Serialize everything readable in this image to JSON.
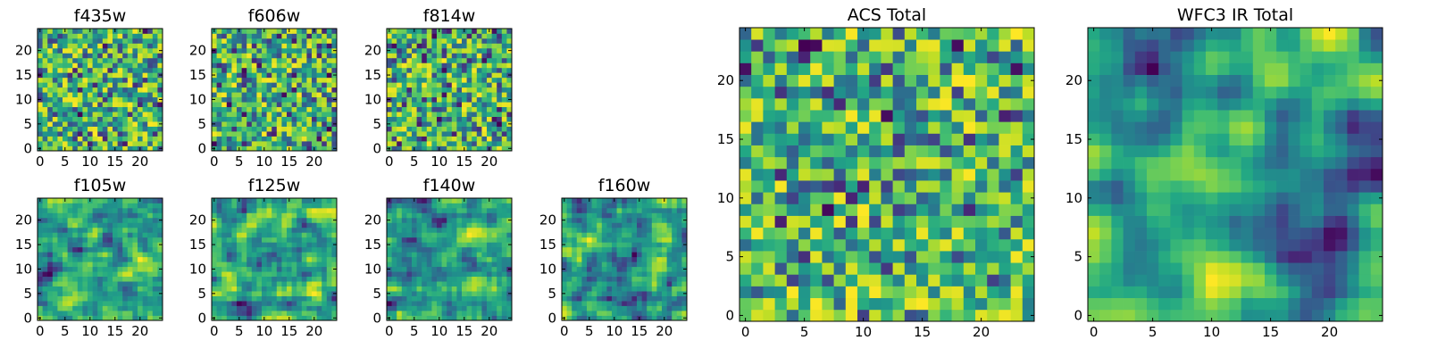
{
  "chart_data": [
    {
      "type": "heatmap",
      "title": "f435w",
      "grid_size": 25,
      "xticks": [
        "0",
        "5",
        "10",
        "15",
        "20"
      ],
      "yticks": [
        "0",
        "5",
        "10",
        "15",
        "20"
      ],
      "xlim": [
        -0.5,
        24.5
      ],
      "ylim": [
        -0.5,
        24.5
      ],
      "seed": 435,
      "smooth": 0,
      "colormap": "viridis"
    },
    {
      "type": "heatmap",
      "title": "f606w",
      "grid_size": 25,
      "xticks": [
        "0",
        "5",
        "10",
        "15",
        "20"
      ],
      "yticks": [
        "0",
        "5",
        "10",
        "15",
        "20"
      ],
      "xlim": [
        -0.5,
        24.5
      ],
      "ylim": [
        -0.5,
        24.5
      ],
      "seed": 606,
      "smooth": 0,
      "colormap": "viridis"
    },
    {
      "type": "heatmap",
      "title": "f814w",
      "grid_size": 25,
      "xticks": [
        "0",
        "5",
        "10",
        "15",
        "20"
      ],
      "yticks": [
        "0",
        "5",
        "10",
        "15",
        "20"
      ],
      "xlim": [
        -0.5,
        24.5
      ],
      "ylim": [
        -0.5,
        24.5
      ],
      "seed": 814,
      "smooth": 0,
      "colormap": "viridis"
    },
    {
      "type": "heatmap",
      "title": "f105w",
      "grid_size": 25,
      "xticks": [
        "0",
        "5",
        "10",
        "15",
        "20"
      ],
      "yticks": [
        "0",
        "5",
        "10",
        "15",
        "20"
      ],
      "xlim": [
        -0.5,
        24.5
      ],
      "ylim": [
        -0.5,
        24.5
      ],
      "seed": 105,
      "smooth": 1,
      "colormap": "viridis"
    },
    {
      "type": "heatmap",
      "title": "f125w",
      "grid_size": 25,
      "xticks": [
        "0",
        "5",
        "10",
        "15",
        "20"
      ],
      "yticks": [
        "0",
        "5",
        "10",
        "15",
        "20"
      ],
      "xlim": [
        -0.5,
        24.5
      ],
      "ylim": [
        -0.5,
        24.5
      ],
      "seed": 125,
      "smooth": 1,
      "colormap": "viridis"
    },
    {
      "type": "heatmap",
      "title": "f140w",
      "grid_size": 25,
      "xticks": [
        "0",
        "5",
        "10",
        "15",
        "20"
      ],
      "yticks": [
        "0",
        "5",
        "10",
        "15",
        "20"
      ],
      "xlim": [
        -0.5,
        24.5
      ],
      "ylim": [
        -0.5,
        24.5
      ],
      "seed": 140,
      "smooth": 1,
      "colormap": "viridis"
    },
    {
      "type": "heatmap",
      "title": "f160w",
      "grid_size": 25,
      "xticks": [
        "0",
        "5",
        "10",
        "15",
        "20"
      ],
      "yticks": [
        "0",
        "5",
        "10",
        "15",
        "20"
      ],
      "xlim": [
        -0.5,
        24.5
      ],
      "ylim": [
        -0.5,
        24.5
      ],
      "seed": 160,
      "smooth": 1,
      "colormap": "viridis"
    },
    {
      "type": "heatmap",
      "title": "ACS Total",
      "grid_size": 25,
      "xticks": [
        "0",
        "5",
        "10",
        "15",
        "20"
      ],
      "yticks": [
        "0",
        "5",
        "10",
        "15",
        "20"
      ],
      "xlim": [
        -0.5,
        24.5
      ],
      "ylim": [
        -0.5,
        24.5
      ],
      "seed": 999,
      "smooth": 0,
      "colormap": "viridis"
    },
    {
      "type": "heatmap",
      "title": "WFC3 IR Total",
      "grid_size": 25,
      "xticks": [
        "0",
        "5",
        "10",
        "15",
        "20"
      ],
      "yticks": [
        "0",
        "5",
        "10",
        "15",
        "20"
      ],
      "xlim": [
        -0.5,
        24.5
      ],
      "ylim": [
        -0.5,
        24.5
      ],
      "seed": 777,
      "smooth": 2,
      "colormap": "viridis"
    }
  ]
}
